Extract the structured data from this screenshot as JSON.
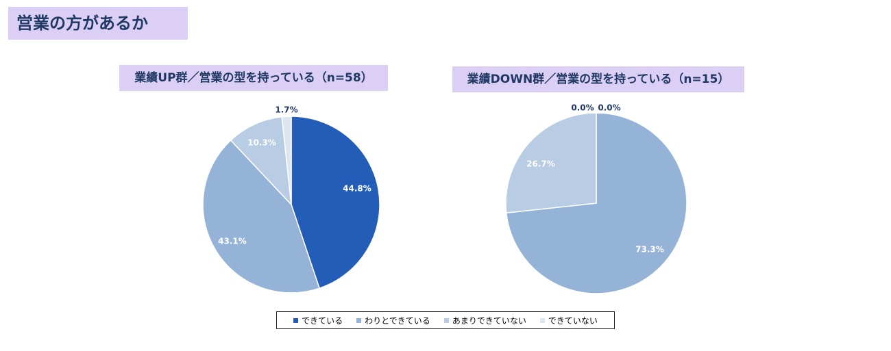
{
  "page": {
    "title": "営業の方があるか"
  },
  "legend": {
    "items": [
      {
        "label": "できている",
        "color": "#235db8"
      },
      {
        "label": "わりとできている",
        "color": "#95b3d7"
      },
      {
        "label": "あまりできていない",
        "color": "#b8cce4"
      },
      {
        "label": "できていない",
        "color": "#dce6f1"
      }
    ]
  },
  "chart_data": [
    {
      "type": "pie",
      "title": "業績UP群／営業の型を持っている（n=58）",
      "categories": [
        "できている",
        "わりとできている",
        "あまりできていない",
        "できていない"
      ],
      "values": [
        44.8,
        43.1,
        10.3,
        1.7
      ],
      "labels": [
        "44.8%",
        "43.1%",
        "10.3%",
        "1.7%"
      ],
      "colors": [
        "#235db8",
        "#95b3d7",
        "#b8cce4",
        "#dce6f1"
      ],
      "label_colors": [
        "#ffffff",
        "#ffffff",
        "#ffffff",
        "#1f3864"
      ]
    },
    {
      "type": "pie",
      "title": "業績DOWN群／営業の型を持っている（n=15）",
      "categories": [
        "できている",
        "わりとできている",
        "あまりできていない",
        "できていない"
      ],
      "values": [
        0.0,
        73.3,
        26.7,
        0.0
      ],
      "labels": [
        "0.0%",
        "73.3%",
        "26.7%",
        "0.0%"
      ],
      "colors": [
        "#235db8",
        "#95b3d7",
        "#b8cce4",
        "#dce6f1"
      ],
      "label_colors": [
        "#1f3864",
        "#ffffff",
        "#ffffff",
        "#1f3864"
      ]
    }
  ]
}
